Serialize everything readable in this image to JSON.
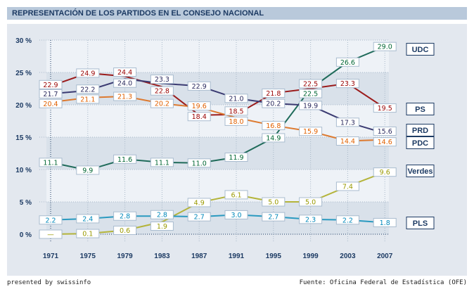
{
  "header": {
    "title": "REPRESENTACIÓN DE LOS PARTIDOS EN EL CONSEJO NACIONAL"
  },
  "footer": {
    "left": "presented by swissinfo",
    "right": "Fuente: Oficina Federal de Estadística (OFE)"
  },
  "chart_data": {
    "type": "line",
    "title": "REPRESENTACIÓN DE LOS PARTIDOS EN EL CONSEJO NACIONAL",
    "x": [
      "1971",
      "1975",
      "1979",
      "1983",
      "1987",
      "1991",
      "1995",
      "1999",
      "2003",
      "2007"
    ],
    "ylim": [
      0,
      30
    ],
    "yticks": [
      "0 %",
      "5 %",
      "10 %",
      "15 %",
      "20 %",
      "25 %",
      "30 %"
    ],
    "missing_label": "—",
    "legend_placement": "right",
    "series": [
      {
        "name": "UDC",
        "color": "#1f6b5a",
        "text_color": "#006633",
        "values": [
          11.1,
          9.9,
          11.6,
          11.1,
          11.0,
          11.9,
          14.9,
          22.5,
          26.6,
          29.0
        ]
      },
      {
        "name": "PS",
        "color": "#9b1b1b",
        "text_color": "#990000",
        "values": [
          22.9,
          24.9,
          24.4,
          22.8,
          18.4,
          18.5,
          21.8,
          22.5,
          23.3,
          19.5
        ]
      },
      {
        "name": "PRD",
        "color": "#3b3b72",
        "text_color": "#2a2a5e",
        "values": [
          21.7,
          22.2,
          24.0,
          23.3,
          22.9,
          21.0,
          20.2,
          19.9,
          17.3,
          15.6
        ]
      },
      {
        "name": "PDC",
        "color": "#dd7a30",
        "text_color": "#e06000",
        "values": [
          20.4,
          21.1,
          21.3,
          20.2,
          19.6,
          18.0,
          16.8,
          15.9,
          14.4,
          14.6
        ]
      },
      {
        "name": "Verdes",
        "color": "#b4b43a",
        "text_color": "#999900",
        "values": [
          null,
          0.1,
          0.6,
          1.9,
          4.9,
          6.1,
          5.0,
          5.0,
          7.4,
          9.6
        ]
      },
      {
        "name": "PLS",
        "color": "#2a9ac0",
        "text_color": "#0088bb",
        "values": [
          2.2,
          2.4,
          2.8,
          2.8,
          2.7,
          3.0,
          2.7,
          2.3,
          2.2,
          1.8
        ]
      }
    ]
  }
}
